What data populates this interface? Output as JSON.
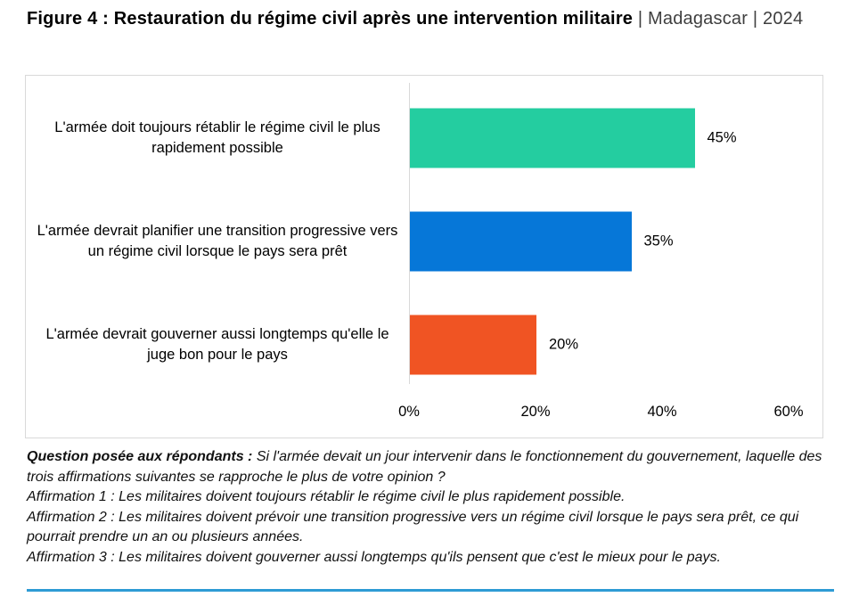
{
  "title": {
    "bold": "Figure 4 : Restauration du régime civil après une intervention militaire",
    "rest": " | Madagascar | 2024"
  },
  "chart_data": {
    "type": "bar",
    "orientation": "horizontal",
    "categories": [
      "L'armée doit toujours rétablir le régime civil le plus rapidement possible",
      "L'armée devrait planifier une transition progressive vers un régime civil lorsque le pays sera prêt",
      "L'armée devrait gouverner aussi longtemps qu'elle le juge bon pour le pays"
    ],
    "values": [
      45,
      35,
      20
    ],
    "value_labels": [
      "45%",
      "35%",
      "20%"
    ],
    "bar_colors": [
      "#24cda0",
      "#0677d8",
      "#f05423"
    ],
    "xlim": [
      0,
      60
    ],
    "x_ticks": [
      0,
      20,
      40,
      60
    ],
    "x_tick_labels": [
      "0%",
      "20%",
      "40%",
      "60%"
    ],
    "grid": false,
    "legend": false,
    "title": "Figure 4 : Restauration du régime civil après une intervention militaire | Madagascar | 2024",
    "xlabel": "",
    "ylabel": ""
  },
  "caption": {
    "question_lead": "Question posée aux répondants :",
    "question_text": " Si l'armée devait un jour intervenir dans le fonctionnement du gouvernement, laquelle des trois affirmations suivantes se rapproche le plus de votre opinion ?",
    "affirmations": [
      "Affirmation 1 : Les militaires doivent toujours rétablir le régime civil le plus rapidement possible.",
      "Affirmation 2 : Les militaires doivent prévoir une transition progressive vers un régime civil lorsque le pays sera prêt, ce qui pourrait prendre un an ou plusieurs années.",
      "Affirmation 3 : Les militaires doivent gouverner aussi longtemps qu'ils pensent que c'est le mieux pour le pays."
    ]
  },
  "colors": {
    "chart_border": "#d9d9d9",
    "axis_line": "#d9d9d9",
    "bottom_rule": "#2e9bd5"
  }
}
